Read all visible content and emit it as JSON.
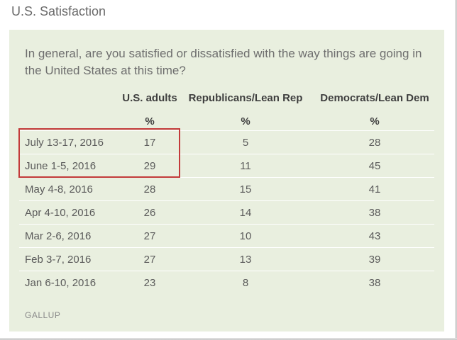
{
  "title": "U.S. Satisfaction",
  "question": "In general, are you satisfied or dissatisfied with the way things are going in the United States at this time?",
  "columns": [
    "U.S. adults",
    "Republicans/Lean Rep",
    "Democrats/Lean Dem"
  ],
  "unit_row": [
    "%",
    "%",
    "%"
  ],
  "rows": [
    {
      "date": "July 13-17, 2016",
      "values": [
        "17",
        "5",
        "28"
      ]
    },
    {
      "date": "June 1-5, 2016",
      "values": [
        "29",
        "11",
        "45"
      ]
    },
    {
      "date": "May 4-8, 2016",
      "values": [
        "28",
        "15",
        "41"
      ]
    },
    {
      "date": "Apr 4-10, 2016",
      "values": [
        "26",
        "14",
        "38"
      ]
    },
    {
      "date": "Mar 2-6, 2016",
      "values": [
        "27",
        "10",
        "43"
      ]
    },
    {
      "date": "Feb 3-7, 2016",
      "values": [
        "27",
        "13",
        "39"
      ]
    },
    {
      "date": "Jan 6-10, 2016",
      "values": [
        "23",
        "8",
        "38"
      ]
    }
  ],
  "source": "GALLUP",
  "colors": {
    "panel": "#e9efdf",
    "highlight": "#c33a3a"
  }
}
